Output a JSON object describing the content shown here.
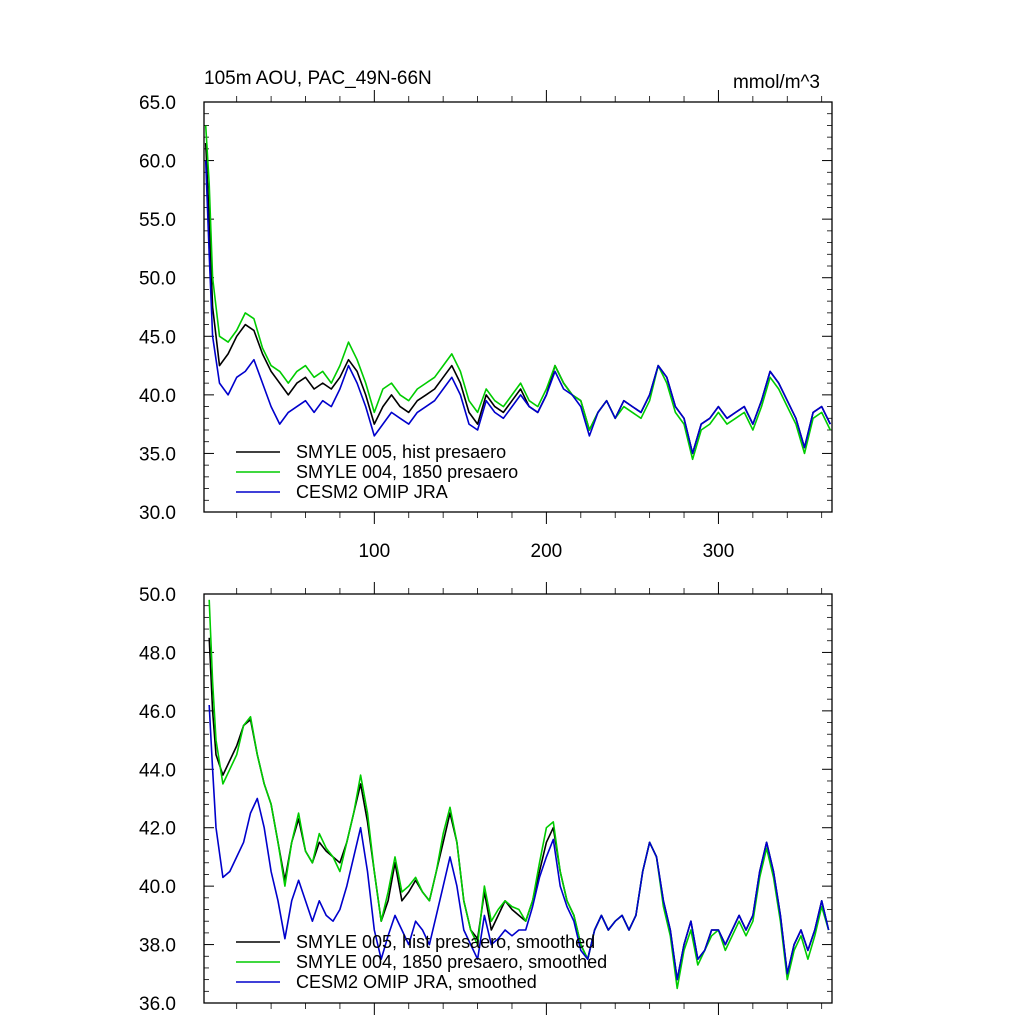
{
  "chart_data": [
    {
      "type": "line",
      "title": "105m AOU, PAC_49N-66N",
      "units": "mmol/m^3",
      "xlim": [
        1,
        366
      ],
      "ylim": [
        30,
        65
      ],
      "yticks": [
        "30.0",
        "35.0",
        "40.0",
        "45.0",
        "50.0",
        "55.0",
        "60.0",
        "65.0"
      ],
      "xticks": [
        "100",
        "200",
        "300"
      ],
      "grid": false,
      "legend_position": "bottom-left",
      "series": [
        {
          "name": "SMYLE 005, hist presaero",
          "color": "#000000",
          "x": [
            2,
            4,
            6,
            10,
            15,
            20,
            25,
            30,
            35,
            40,
            45,
            50,
            55,
            60,
            65,
            70,
            75,
            80,
            85,
            90,
            95,
            100,
            105,
            110,
            115,
            120,
            125,
            130,
            135,
            140,
            145,
            150,
            155,
            160,
            165,
            170,
            175,
            180,
            185,
            190,
            195,
            200,
            205,
            210,
            215,
            220,
            225,
            230,
            235,
            240,
            245,
            250,
            255,
            260,
            265,
            270,
            275,
            280,
            285,
            290,
            295,
            300,
            305,
            310,
            315,
            320,
            325,
            330,
            335,
            340,
            345,
            350,
            355,
            360,
            365
          ],
          "y": [
            61.5,
            55.0,
            47.5,
            42.5,
            43.5,
            45.0,
            46.0,
            45.5,
            43.5,
            42.0,
            41.0,
            40.0,
            41.0,
            41.5,
            40.5,
            41.0,
            40.5,
            41.5,
            43.0,
            42.0,
            40.0,
            37.5,
            39.0,
            40.0,
            39.0,
            38.5,
            39.5,
            40.0,
            40.5,
            41.5,
            42.5,
            41.0,
            38.5,
            37.5,
            40.0,
            39.0,
            38.5,
            39.5,
            40.5,
            39.0,
            38.5,
            40.0,
            42.5,
            41.0,
            40.0,
            39.5,
            37.0,
            38.5,
            39.5,
            38.0,
            39.5,
            39.0,
            38.5,
            40.0,
            42.5,
            41.5,
            39.0,
            38.0,
            35.0,
            37.5,
            38.0,
            39.0,
            38.0,
            38.5,
            39.0,
            37.5,
            39.5,
            42.0,
            41.0,
            39.5,
            38.0,
            35.5,
            38.5,
            39.0,
            37.5
          ]
        },
        {
          "name": "SMYLE 004, 1850 presaero",
          "color": "#00cc00",
          "x": [
            2,
            4,
            6,
            10,
            15,
            20,
            25,
            30,
            35,
            40,
            45,
            50,
            55,
            60,
            65,
            70,
            75,
            80,
            85,
            90,
            95,
            100,
            105,
            110,
            115,
            120,
            125,
            130,
            135,
            140,
            145,
            150,
            155,
            160,
            165,
            170,
            175,
            180,
            185,
            190,
            195,
            200,
            205,
            210,
            215,
            220,
            225,
            230,
            235,
            240,
            245,
            250,
            255,
            260,
            265,
            270,
            275,
            280,
            285,
            290,
            295,
            300,
            305,
            310,
            315,
            320,
            325,
            330,
            335,
            340,
            345,
            350,
            355,
            360,
            365
          ],
          "y": [
            63.0,
            58.0,
            50.0,
            45.0,
            44.5,
            45.5,
            47.0,
            46.5,
            44.0,
            42.5,
            42.0,
            41.0,
            42.0,
            42.5,
            41.5,
            42.0,
            41.0,
            42.5,
            44.5,
            43.0,
            41.0,
            38.5,
            40.5,
            41.0,
            40.0,
            39.5,
            40.5,
            41.0,
            41.5,
            42.5,
            43.5,
            42.0,
            39.5,
            38.5,
            40.5,
            39.5,
            39.0,
            40.0,
            41.0,
            39.5,
            39.0,
            40.5,
            42.5,
            41.0,
            40.0,
            39.5,
            37.0,
            38.5,
            39.5,
            38.0,
            39.0,
            38.5,
            38.0,
            39.5,
            42.5,
            41.0,
            38.5,
            37.5,
            34.5,
            37.0,
            37.5,
            38.5,
            37.5,
            38.0,
            38.5,
            37.0,
            39.0,
            41.5,
            40.5,
            39.0,
            37.5,
            35.0,
            38.0,
            38.5,
            37.0
          ]
        },
        {
          "name": "CESM2 OMIP JRA",
          "color": "#0000cc",
          "x": [
            2,
            4,
            6,
            10,
            15,
            20,
            25,
            30,
            35,
            40,
            45,
            50,
            55,
            60,
            65,
            70,
            75,
            80,
            85,
            90,
            95,
            100,
            105,
            110,
            115,
            120,
            125,
            130,
            135,
            140,
            145,
            150,
            155,
            160,
            165,
            170,
            175,
            180,
            185,
            190,
            195,
            200,
            205,
            210,
            215,
            220,
            225,
            230,
            235,
            240,
            245,
            250,
            255,
            260,
            265,
            270,
            275,
            280,
            285,
            290,
            295,
            300,
            305,
            310,
            315,
            320,
            325,
            330,
            335,
            340,
            345,
            350,
            355,
            360,
            365
          ],
          "y": [
            60.0,
            52.0,
            45.0,
            41.0,
            40.0,
            41.5,
            42.0,
            43.0,
            41.0,
            39.0,
            37.5,
            38.5,
            39.0,
            39.5,
            38.5,
            39.5,
            39.0,
            40.5,
            42.5,
            41.0,
            39.0,
            36.5,
            37.5,
            38.5,
            38.0,
            37.5,
            38.5,
            39.0,
            39.5,
            40.5,
            41.5,
            40.0,
            37.5,
            37.0,
            39.5,
            38.5,
            38.0,
            39.0,
            40.0,
            39.0,
            38.5,
            40.0,
            42.0,
            40.5,
            40.0,
            39.0,
            36.5,
            38.5,
            39.5,
            38.0,
            39.5,
            39.0,
            38.5,
            40.0,
            42.5,
            41.5,
            39.0,
            38.0,
            35.0,
            37.5,
            38.0,
            39.0,
            38.0,
            38.5,
            39.0,
            37.5,
            39.5,
            42.0,
            41.0,
            39.5,
            38.0,
            35.5,
            38.5,
            39.0,
            37.5
          ]
        }
      ]
    },
    {
      "type": "line",
      "title": "",
      "units": "",
      "xlim": [
        1,
        366
      ],
      "ylim": [
        36,
        50
      ],
      "yticks": [
        "36.0",
        "38.0",
        "40.0",
        "42.0",
        "44.0",
        "46.0",
        "48.0",
        "50.0"
      ],
      "xticks": [],
      "grid": false,
      "legend_position": "bottom-left",
      "series": [
        {
          "name": "SMYLE 005, hist presaero, smoothed",
          "color": "#000000",
          "x": [
            4,
            6,
            8,
            12,
            16,
            20,
            24,
            28,
            32,
            36,
            40,
            44,
            48,
            52,
            56,
            60,
            64,
            68,
            72,
            76,
            80,
            84,
            88,
            92,
            96,
            100,
            104,
            108,
            112,
            116,
            120,
            124,
            128,
            132,
            136,
            140,
            144,
            148,
            152,
            156,
            160,
            164,
            168,
            172,
            176,
            180,
            184,
            188,
            192,
            196,
            200,
            204,
            208,
            212,
            216,
            220,
            224,
            228,
            232,
            236,
            240,
            244,
            248,
            252,
            256,
            260,
            264,
            268,
            272,
            276,
            280,
            284,
            288,
            292,
            296,
            300,
            304,
            308,
            312,
            316,
            320,
            324,
            328,
            332,
            336,
            340,
            344,
            348,
            352,
            356,
            360,
            364
          ],
          "y": [
            48.5,
            46.0,
            44.5,
            43.8,
            44.3,
            44.8,
            45.5,
            45.7,
            44.5,
            43.5,
            42.8,
            41.5,
            40.2,
            41.5,
            42.3,
            41.2,
            40.8,
            41.5,
            41.2,
            41.0,
            40.8,
            41.5,
            42.5,
            43.5,
            42.2,
            40.5,
            38.8,
            39.5,
            40.8,
            39.5,
            39.8,
            40.2,
            39.8,
            39.5,
            40.5,
            41.5,
            42.5,
            41.5,
            39.5,
            38.5,
            38.2,
            39.8,
            38.5,
            39.0,
            39.5,
            39.2,
            39.0,
            38.8,
            39.5,
            40.5,
            41.5,
            42.0,
            40.5,
            39.5,
            39.0,
            38.0,
            37.5,
            38.5,
            39.0,
            38.5,
            38.8,
            39.0,
            38.5,
            39.0,
            40.5,
            41.5,
            41.0,
            39.5,
            38.5,
            36.8,
            38.0,
            38.8,
            37.5,
            37.8,
            38.5,
            38.5,
            38.0,
            38.5,
            39.0,
            38.5,
            39.0,
            40.5,
            41.5,
            40.5,
            39.0,
            37.0,
            38.0,
            38.5,
            37.8,
            38.5,
            39.5,
            38.5
          ]
        },
        {
          "name": "SMYLE 004, 1850 presaero, smoothed",
          "color": "#00cc00",
          "x": [
            4,
            6,
            8,
            12,
            16,
            20,
            24,
            28,
            32,
            36,
            40,
            44,
            48,
            52,
            56,
            60,
            64,
            68,
            72,
            76,
            80,
            84,
            88,
            92,
            96,
            100,
            104,
            108,
            112,
            116,
            120,
            124,
            128,
            132,
            136,
            140,
            144,
            148,
            152,
            156,
            160,
            164,
            168,
            172,
            176,
            180,
            184,
            188,
            192,
            196,
            200,
            204,
            208,
            212,
            216,
            220,
            224,
            228,
            232,
            236,
            240,
            244,
            248,
            252,
            256,
            260,
            264,
            268,
            272,
            276,
            280,
            284,
            288,
            292,
            296,
            300,
            304,
            308,
            312,
            316,
            320,
            324,
            328,
            332,
            336,
            340,
            344,
            348,
            352,
            356,
            360,
            364
          ],
          "y": [
            49.8,
            47.0,
            45.0,
            43.5,
            44.0,
            44.5,
            45.5,
            45.8,
            44.5,
            43.5,
            42.8,
            41.5,
            40.0,
            41.5,
            42.5,
            41.2,
            40.8,
            41.8,
            41.3,
            41.0,
            40.5,
            41.5,
            42.5,
            43.8,
            42.5,
            40.5,
            38.8,
            39.8,
            41.0,
            39.8,
            40.0,
            40.3,
            39.8,
            39.5,
            40.5,
            41.8,
            42.7,
            41.5,
            39.5,
            38.5,
            38.0,
            40.0,
            38.8,
            39.2,
            39.5,
            39.3,
            39.2,
            38.8,
            39.5,
            40.8,
            42.0,
            42.2,
            40.5,
            39.5,
            39.0,
            38.0,
            37.5,
            38.5,
            39.0,
            38.5,
            38.8,
            39.0,
            38.5,
            39.0,
            40.5,
            41.5,
            41.0,
            39.3,
            38.3,
            36.5,
            37.8,
            38.5,
            37.3,
            37.8,
            38.3,
            38.5,
            37.8,
            38.3,
            38.8,
            38.3,
            38.8,
            40.3,
            41.3,
            40.3,
            38.8,
            36.8,
            37.8,
            38.3,
            37.5,
            38.3,
            39.3,
            38.5
          ]
        },
        {
          "name": "CESM2 OMIP JRA, smoothed",
          "color": "#0000cc",
          "x": [
            4,
            6,
            8,
            12,
            16,
            20,
            24,
            28,
            32,
            36,
            40,
            44,
            48,
            52,
            56,
            60,
            64,
            68,
            72,
            76,
            80,
            84,
            88,
            92,
            96,
            100,
            104,
            108,
            112,
            116,
            120,
            124,
            128,
            132,
            136,
            140,
            144,
            148,
            152,
            156,
            160,
            164,
            168,
            172,
            176,
            180,
            184,
            188,
            192,
            196,
            200,
            204,
            208,
            212,
            216,
            220,
            224,
            228,
            232,
            236,
            240,
            244,
            248,
            252,
            256,
            260,
            264,
            268,
            272,
            276,
            280,
            284,
            288,
            292,
            296,
            300,
            304,
            308,
            312,
            316,
            320,
            324,
            328,
            332,
            336,
            340,
            344,
            348,
            352,
            356,
            360,
            364
          ],
          "y": [
            46.2,
            44.0,
            42.0,
            40.3,
            40.5,
            41.0,
            41.5,
            42.5,
            43.0,
            42.0,
            40.5,
            39.5,
            38.2,
            39.5,
            40.2,
            39.5,
            38.8,
            39.5,
            39.0,
            38.8,
            39.2,
            40.0,
            41.0,
            42.0,
            40.5,
            38.5,
            37.5,
            38.3,
            39.0,
            38.5,
            38.0,
            38.8,
            38.5,
            38.0,
            39.0,
            40.0,
            41.0,
            40.0,
            38.5,
            38.0,
            37.5,
            39.0,
            38.0,
            38.2,
            38.5,
            38.3,
            38.5,
            38.5,
            39.3,
            40.3,
            41.0,
            41.6,
            40.0,
            39.3,
            38.8,
            37.8,
            37.5,
            38.5,
            39.0,
            38.5,
            38.8,
            39.0,
            38.5,
            39.0,
            40.5,
            41.5,
            41.0,
            39.5,
            38.5,
            36.8,
            38.0,
            38.8,
            37.5,
            37.8,
            38.5,
            38.5,
            38.0,
            38.5,
            39.0,
            38.5,
            39.0,
            40.5,
            41.5,
            40.5,
            39.0,
            37.0,
            38.0,
            38.5,
            37.8,
            38.5,
            39.5,
            38.5
          ]
        }
      ]
    }
  ]
}
